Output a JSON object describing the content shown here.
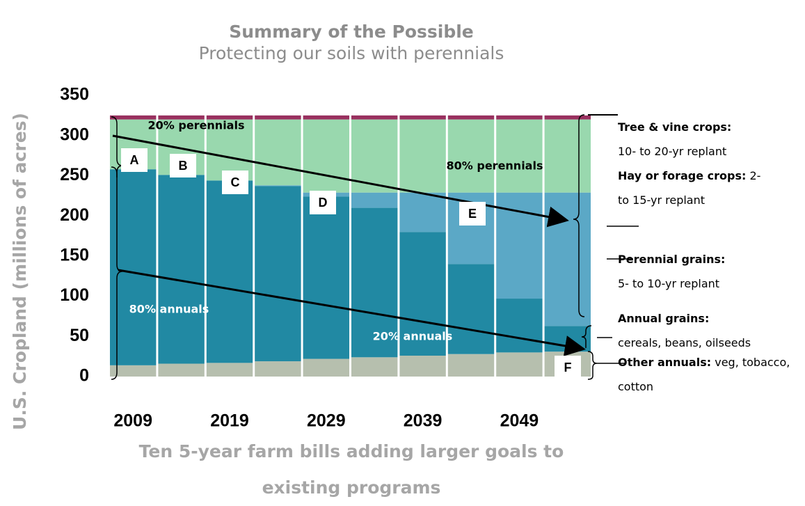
{
  "chart_data": {
    "type": "stacked_bar",
    "title": "Summary of the Possible",
    "subtitle": "Protecting our soils with perennials",
    "ylabel": "U.S. Cropland (millions of acres)",
    "xlabel": "Ten 5-year farm bills adding larger goals to existing programs",
    "categories": [
      "2009",
      null,
      "2019",
      null,
      "2029",
      null,
      "2039",
      null,
      "2049",
      null
    ],
    "series": [
      {
        "name": "Other annuals:",
        "description": "veg, tobacco, cotton",
        "color": "#b6bfae",
        "values": [
          14,
          16,
          17,
          19,
          22,
          24,
          26,
          28,
          30,
          31
        ]
      },
      {
        "name": "Annual grains:",
        "description": "cereals, beans, oilseeds",
        "color": "#2189a3",
        "values": [
          244,
          235,
          227,
          218,
          202,
          186,
          154,
          112,
          67,
          32
        ]
      },
      {
        "name": "Perennial grains:",
        "description": "5- to 10-yr replant",
        "color": "#5ba8c6",
        "values": [
          0,
          0,
          0,
          1,
          5,
          19,
          49,
          89,
          132,
          166
        ]
      },
      {
        "name": "Hay or forage crops:",
        "description": "2- to 15-yr replant",
        "color": "#99d8ae",
        "values": [
          62,
          69,
          76,
          82,
          91,
          91,
          91,
          91,
          91,
          91
        ]
      },
      {
        "name": "Tree & vine crops:",
        "description": "10- to 20-yr replant",
        "color": "#99305f",
        "values": [
          5,
          5,
          5,
          5,
          5,
          5,
          5,
          5,
          5,
          5
        ]
      }
    ],
    "ylim": [
      0,
      350
    ],
    "yticks": [
      0,
      50,
      100,
      150,
      200,
      250,
      300,
      350
    ],
    "grid": false,
    "letters": [
      "A",
      "B",
      "C",
      "D",
      "E",
      "F"
    ],
    "annotations": [
      "20% perennials",
      "80% perennials",
      "80% annuals",
      "20% annuals"
    ]
  }
}
